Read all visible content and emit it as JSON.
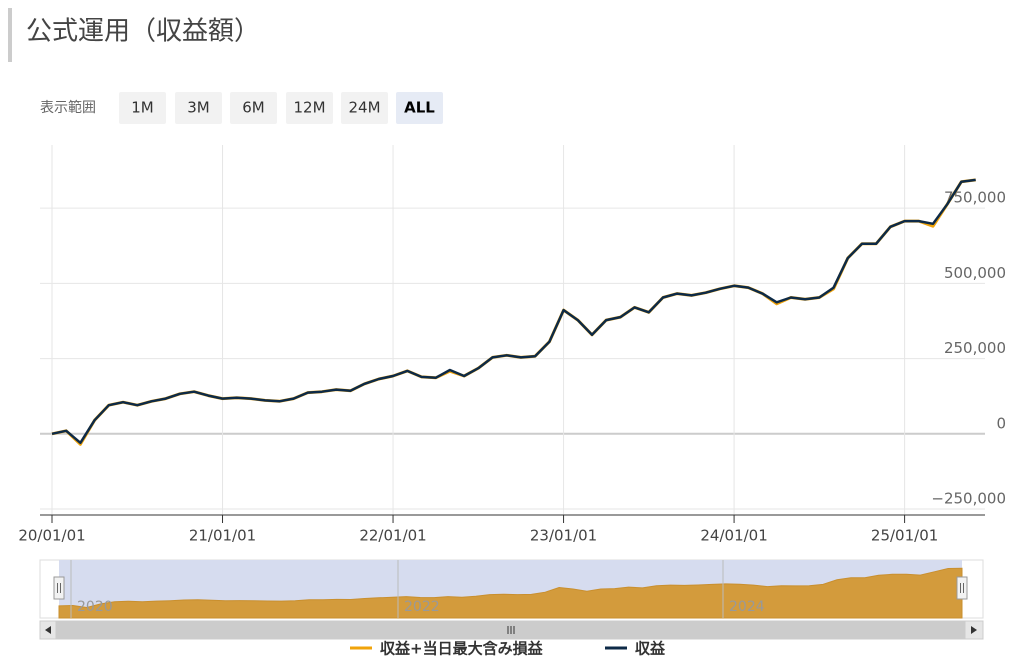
{
  "header": {
    "title": "公式運用（収益額）"
  },
  "range_selector": {
    "label": "表示範囲",
    "buttons": [
      "1M",
      "3M",
      "6M",
      "12M",
      "24M",
      "ALL"
    ],
    "selected": 5
  },
  "chart_data": {
    "type": "line",
    "categories": [
      "20/01/01",
      null,
      null,
      null,
      null,
      null,
      null,
      null,
      null,
      null,
      null,
      null,
      "21/01/01",
      null,
      null,
      null,
      null,
      null,
      null,
      null,
      null,
      null,
      null,
      null,
      "22/01/01",
      null,
      null,
      null,
      null,
      null,
      null,
      null,
      null,
      null,
      null,
      null,
      "23/01/01",
      null,
      null,
      null,
      null,
      null,
      null,
      null,
      null,
      null,
      null,
      null,
      "24/01/01",
      null,
      null,
      null,
      null,
      null,
      null,
      null,
      null,
      null,
      null,
      null,
      "25/01/01",
      null,
      null,
      null,
      null,
      null
    ],
    "series": [
      {
        "name": "収益+当日最大含み損益",
        "color": "#f0a30a",
        "values": [
          0,
          10000,
          -35000,
          45000,
          95000,
          105000,
          95000,
          108000,
          117000,
          133000,
          140000,
          127000,
          117000,
          120000,
          117000,
          111000,
          108000,
          117000,
          137000,
          140000,
          147000,
          143000,
          166000,
          182000,
          192000,
          209000,
          189000,
          186000,
          208000,
          192000,
          218000,
          254000,
          261000,
          254000,
          258000,
          306000,
          411000,
          378000,
          329000,
          378000,
          388000,
          420000,
          404000,
          453000,
          466000,
          460000,
          469000,
          482000,
          492000,
          486000,
          466000,
          432000,
          453000,
          447000,
          453000,
          482000,
          584000,
          632000,
          632000,
          688000,
          707000,
          707000,
          690000,
          763000,
          838000,
          844000
        ]
      },
      {
        "name": "収益",
        "color": "#0d2a47",
        "values": [
          0,
          10000,
          -30000,
          45000,
          95000,
          105000,
          95000,
          108000,
          117000,
          133000,
          140000,
          127000,
          117000,
          120000,
          117000,
          111000,
          108000,
          117000,
          137000,
          140000,
          147000,
          143000,
          166000,
          182000,
          192000,
          209000,
          189000,
          186000,
          212000,
          192000,
          218000,
          254000,
          261000,
          254000,
          258000,
          306000,
          411000,
          378000,
          329000,
          378000,
          388000,
          420000,
          404000,
          453000,
          466000,
          460000,
          469000,
          482000,
          492000,
          486000,
          466000,
          437000,
          453000,
          447000,
          453000,
          486000,
          584000,
          632000,
          632000,
          688000,
          707000,
          707000,
          698000,
          763000,
          838000,
          844000
        ]
      }
    ],
    "ylim": [
      -270000,
      960000
    ],
    "yticks": [
      {
        "value": -250000,
        "label": "−250,000"
      },
      0,
      {
        "value": 250000,
        "label": "250,000"
      },
      {
        "value": 500000,
        "label": "500,000"
      },
      {
        "value": 750000,
        "label": "750,000"
      }
    ],
    "grid": true,
    "legend": "bottom"
  },
  "navigator": {
    "labels": [
      "2020",
      "2022",
      "2024"
    ]
  }
}
